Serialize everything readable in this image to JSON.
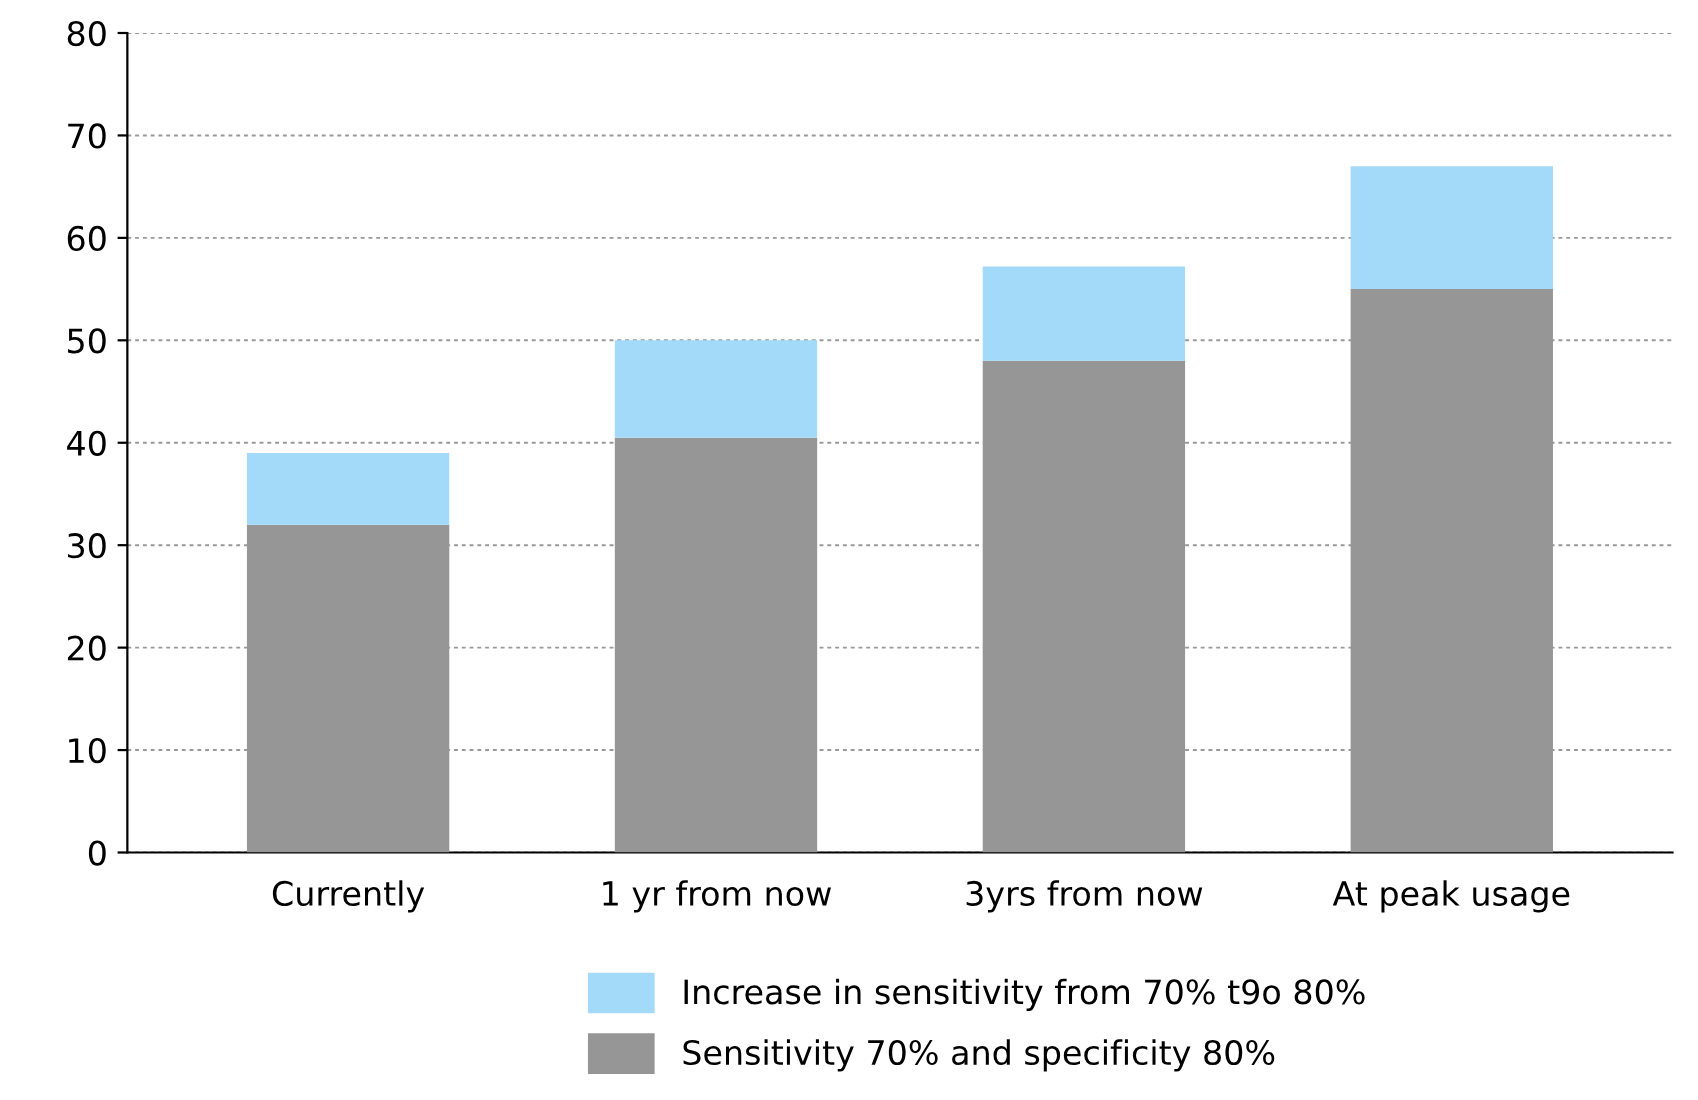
{
  "chart_data": {
    "type": "bar",
    "stacked": true,
    "categories": [
      "Currently",
      "1 yr from now",
      "3yrs from now",
      "At peak usage"
    ],
    "series": [
      {
        "name": "Sensitivity 70% and specificity 80%",
        "color": "#969696",
        "values": [
          32,
          40.5,
          48,
          55
        ]
      },
      {
        "name": "Increase in sensitivity from 70% t9o 80%",
        "color": "#a3daf9",
        "values": [
          7,
          9.5,
          9.2,
          12
        ]
      }
    ],
    "ylim": [
      0,
      80
    ],
    "yticks": [
      0,
      10,
      20,
      30,
      40,
      50,
      60,
      70,
      80
    ],
    "grid": "y",
    "legend": "bottom"
  }
}
